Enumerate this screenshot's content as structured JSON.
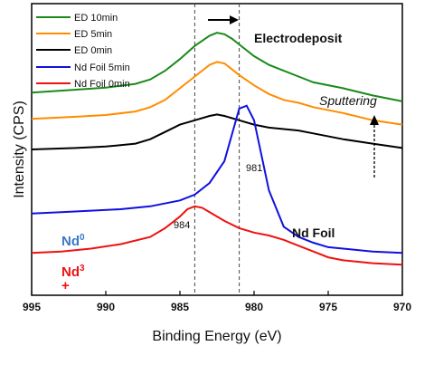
{
  "chart_data": {
    "type": "line",
    "xlabel": "Binding Energy (eV)",
    "ylabel": "Intensity (CPS)",
    "xlim": [
      995,
      970
    ],
    "x_reversed": true,
    "x_ticks": [
      "995",
      "990",
      "985",
      "980",
      "975",
      "970"
    ],
    "y_ticks_shown": false,
    "grid": false,
    "legend_position": "top-left",
    "series": [
      {
        "name": "ED 10min",
        "color": "#1a8a1a",
        "x": [
          995,
          992,
          990,
          988,
          987,
          986,
          985,
          984,
          983,
          982.5,
          982,
          981.5,
          981,
          980,
          979,
          978,
          977,
          976,
          974,
          972,
          970
        ],
        "y": [
          0.695,
          0.705,
          0.712,
          0.725,
          0.74,
          0.77,
          0.81,
          0.855,
          0.89,
          0.9,
          0.895,
          0.88,
          0.86,
          0.82,
          0.79,
          0.77,
          0.75,
          0.73,
          0.71,
          0.685,
          0.665
        ]
      },
      {
        "name": "ED 5min",
        "color": "#ff8c00",
        "x": [
          995,
          992,
          990,
          988,
          987,
          986,
          985,
          984,
          983,
          982.5,
          982,
          981.5,
          981,
          980,
          979,
          978,
          977,
          976,
          974,
          972,
          970
        ],
        "y": [
          0.605,
          0.612,
          0.618,
          0.63,
          0.645,
          0.67,
          0.71,
          0.75,
          0.79,
          0.8,
          0.795,
          0.775,
          0.755,
          0.72,
          0.69,
          0.67,
          0.66,
          0.645,
          0.625,
          0.6,
          0.585
        ]
      },
      {
        "name": "ED 0min",
        "color": "#000000",
        "x": [
          995,
          992,
          990,
          988,
          987,
          986,
          985,
          984,
          983,
          982.5,
          982,
          981,
          980,
          979,
          978,
          977,
          976,
          974,
          972,
          970
        ],
        "y": [
          0.5,
          0.505,
          0.51,
          0.52,
          0.535,
          0.56,
          0.585,
          0.6,
          0.615,
          0.62,
          0.615,
          0.6,
          0.585,
          0.575,
          0.57,
          0.565,
          0.555,
          0.535,
          0.52,
          0.505
        ]
      },
      {
        "name": "Nd Foil 5min",
        "color": "#1010e0",
        "x": [
          995,
          993,
          991,
          989,
          987,
          985,
          984,
          983,
          982,
          981.5,
          981,
          980.5,
          980,
          979.5,
          979,
          978,
          977,
          976,
          975,
          974,
          972,
          970
        ],
        "y": [
          0.28,
          0.285,
          0.29,
          0.295,
          0.305,
          0.325,
          0.345,
          0.385,
          0.46,
          0.55,
          0.64,
          0.65,
          0.6,
          0.48,
          0.36,
          0.235,
          0.2,
          0.18,
          0.165,
          0.16,
          0.15,
          0.145
        ]
      },
      {
        "name": "Nd Foil 0min",
        "color": "#ee1111",
        "x": [
          995,
          993,
          991,
          989,
          987,
          986,
          985,
          984.5,
          984,
          983.5,
          983,
          982,
          981,
          980,
          979,
          978,
          977,
          976,
          975,
          974,
          972,
          970
        ],
        "y": [
          0.145,
          0.15,
          0.16,
          0.175,
          0.2,
          0.23,
          0.27,
          0.295,
          0.305,
          0.3,
          0.285,
          0.255,
          0.23,
          0.215,
          0.205,
          0.19,
          0.17,
          0.15,
          0.13,
          0.12,
          0.11,
          0.105
        ]
      }
    ],
    "reference_lines_x": [
      984,
      981
    ],
    "annotations": {
      "electrodeposit": "Electrodeposit",
      "sputtering": "Sputtering",
      "nd_foil": "Nd Foil",
      "peak_984": "984",
      "peak_981": "981",
      "nd0_base": "Nd",
      "nd0_sup": "0",
      "nd3_base": "Nd",
      "nd3_sup": "3",
      "nd3_plus": "+"
    },
    "label_colors": {
      "nd0": "#3a78c9",
      "nd3": "#ee1111"
    }
  }
}
